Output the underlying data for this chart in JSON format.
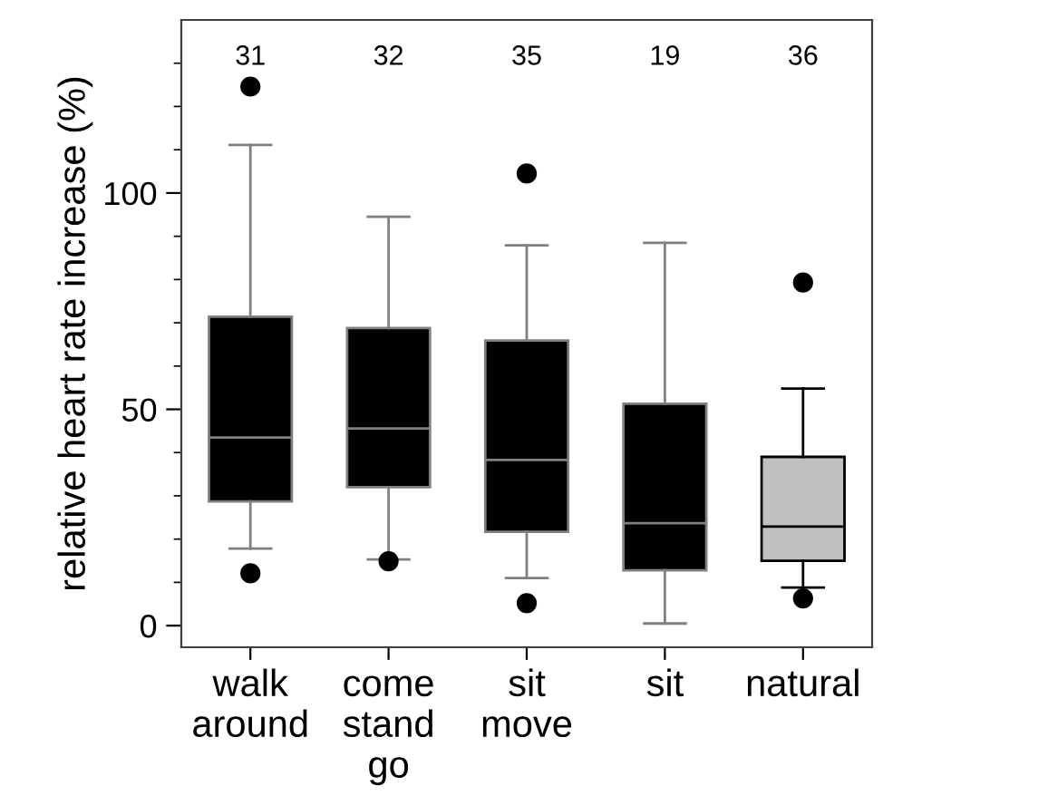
{
  "chart_data": {
    "type": "box",
    "ylabel": "relative heart rate increase (%)",
    "categories": [
      "walk\naround",
      "come\nstand\ngo",
      "sit\nmove",
      "sit",
      "natural"
    ],
    "colors": [
      "#000000",
      "#000000",
      "#000000",
      "#000000",
      "#c0c0c0"
    ],
    "boxes": [
      {
        "low": 17.8,
        "q1": 28.7,
        "median": 43.5,
        "q3": 71.4,
        "high": 111.1,
        "outliers": [
          124.6,
          12.1
        ]
      },
      {
        "low": 15.3,
        "q1": 32.0,
        "median": 45.6,
        "q3": 68.8,
        "high": 94.5,
        "outliers": [
          14.9
        ]
      },
      {
        "low": 11.0,
        "q1": 21.7,
        "median": 38.3,
        "q3": 65.9,
        "high": 87.9,
        "outliers": [
          104.5,
          5.2
        ]
      },
      {
        "low": 0.5,
        "q1": 12.8,
        "median": 23.7,
        "q3": 51.3,
        "high": 88.5
      },
      {
        "low": 8.8,
        "q1": 15.0,
        "median": 22.9,
        "q3": 39.0,
        "high": 54.8,
        "outliers": [
          79.3,
          6.3
        ]
      }
    ],
    "ylim": [
      -5,
      140
    ],
    "yticks": [
      0,
      {
        "value": 10,
        "label": null
      },
      {
        "value": 20,
        "label": null
      },
      {
        "value": 30,
        "label": null
      },
      {
        "value": 40,
        "label": null
      },
      50,
      {
        "value": 60,
        "label": null
      },
      {
        "value": 70,
        "label": null
      },
      {
        "value": 80,
        "label": null
      },
      {
        "value": 90,
        "label": null
      },
      100,
      {
        "value": 110,
        "label": null
      },
      {
        "value": 120,
        "label": null
      },
      {
        "value": 130,
        "label": null
      }
    ],
    "annotations": [
      "31",
      "32",
      "35",
      "19",
      "36"
    ],
    "grid": false,
    "legend": false
  }
}
